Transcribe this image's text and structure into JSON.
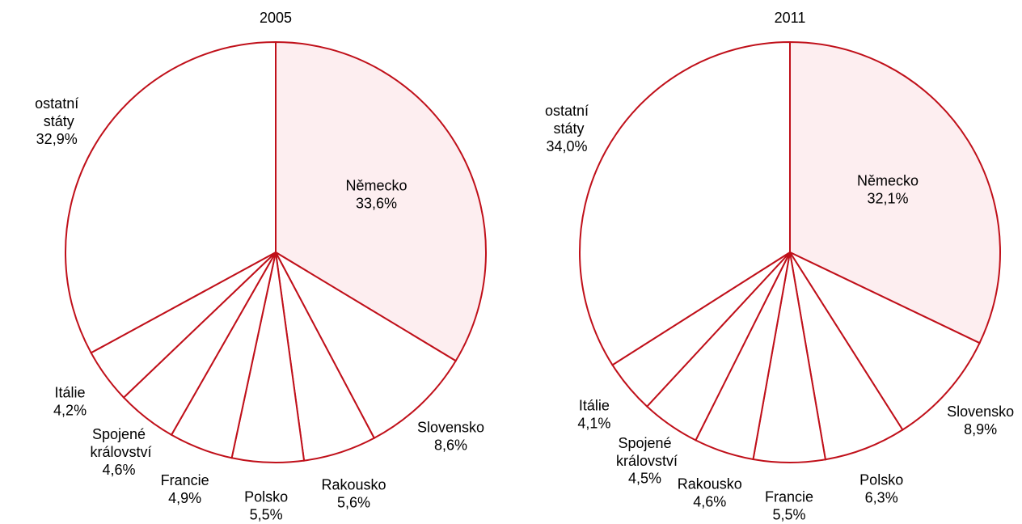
{
  "chart_data": [
    {
      "type": "pie",
      "title": "2005",
      "categories": [
        "Německo",
        "Slovensko",
        "Rakousko",
        "Polsko",
        "Francie",
        "Spojené království",
        "Itálie",
        "ostatní státy"
      ],
      "values": [
        33.6,
        8.6,
        5.6,
        5.5,
        4.9,
        4.6,
        4.2,
        32.9
      ],
      "value_labels": [
        "33,6%",
        "8,6%",
        "5,6%",
        "5,5%",
        "4,9%",
        "4,6%",
        "4,2%",
        "32,9%"
      ],
      "colors": [
        "#fdeef0",
        "#ffffff",
        "#ffffff",
        "#ffffff",
        "#ffffff",
        "#ffffff",
        "#ffffff",
        "#ffffff"
      ],
      "edge_color": "#c0101a"
    },
    {
      "type": "pie",
      "title": "2011",
      "categories": [
        "Německo",
        "Slovensko",
        "Polsko",
        "Francie",
        "Rakousko",
        "Spojené království",
        "Itálie",
        "ostatní státy"
      ],
      "values": [
        32.1,
        8.9,
        6.3,
        5.5,
        4.6,
        4.5,
        4.1,
        34.0
      ],
      "value_labels": [
        "32,1%",
        "8,9%",
        "6,3%",
        "5,5%",
        "4,6%",
        "4,5%",
        "4,1%",
        "34,0%"
      ],
      "colors": [
        "#fdeef0",
        "#ffffff",
        "#ffffff",
        "#ffffff",
        "#ffffff",
        "#ffffff",
        "#ffffff",
        "#ffffff"
      ],
      "edge_color": "#c0101a"
    }
  ]
}
